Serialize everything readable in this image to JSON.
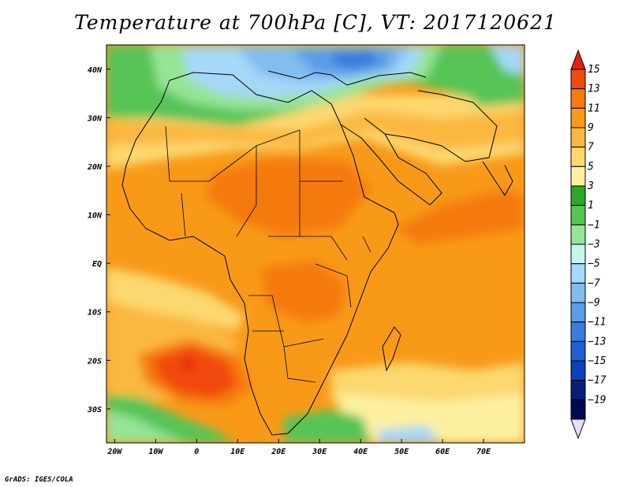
{
  "title": "Temperature at 700hPa [C], VT: 2017120621",
  "credit": "GrADS: IGES/COLA",
  "map": {
    "variable": "Temperature",
    "level": "700hPa",
    "units": "C",
    "valid_time": "2017120621",
    "lon_range": [
      -22,
      80
    ],
    "lat_range": [
      -37,
      45
    ],
    "lon_ticks": [
      {
        "value": -20,
        "label": "20W"
      },
      {
        "value": -10,
        "label": "10W"
      },
      {
        "value": 0,
        "label": "0"
      },
      {
        "value": 10,
        "label": "10E"
      },
      {
        "value": 20,
        "label": "20E"
      },
      {
        "value": 30,
        "label": "30E"
      },
      {
        "value": 40,
        "label": "40E"
      },
      {
        "value": 50,
        "label": "50E"
      },
      {
        "value": 60,
        "label": "60E"
      },
      {
        "value": 70,
        "label": "70E"
      }
    ],
    "lat_ticks": [
      {
        "value": 40,
        "label": "40N"
      },
      {
        "value": 30,
        "label": "30N"
      },
      {
        "value": 20,
        "label": "20N"
      },
      {
        "value": 10,
        "label": "10N"
      },
      {
        "value": 0,
        "label": "EQ"
      },
      {
        "value": -10,
        "label": "10S"
      },
      {
        "value": -20,
        "label": "20S"
      },
      {
        "value": -30,
        "label": "30S"
      }
    ]
  },
  "colorbar": {
    "labels": [
      "15",
      "13",
      "11",
      "9",
      "7",
      "5",
      "3",
      "1",
      "−1",
      "−3",
      "−5",
      "−7",
      "−9",
      "−11",
      "−13",
      "−15",
      "−17",
      "−19"
    ],
    "colors": [
      "#e8200a",
      "#f04a0c",
      "#f57a10",
      "#f89a18",
      "#fbb840",
      "#fcd870",
      "#fcf0a0",
      "#2aa82a",
      "#56c456",
      "#96e496",
      "#c8f5ee",
      "#a6d8f8",
      "#82bcf0",
      "#5a9ce6",
      "#3a7cdc",
      "#205ed2",
      "#0a40b8",
      "#06207a",
      "#000a50",
      "#e6e0fa"
    ]
  }
}
